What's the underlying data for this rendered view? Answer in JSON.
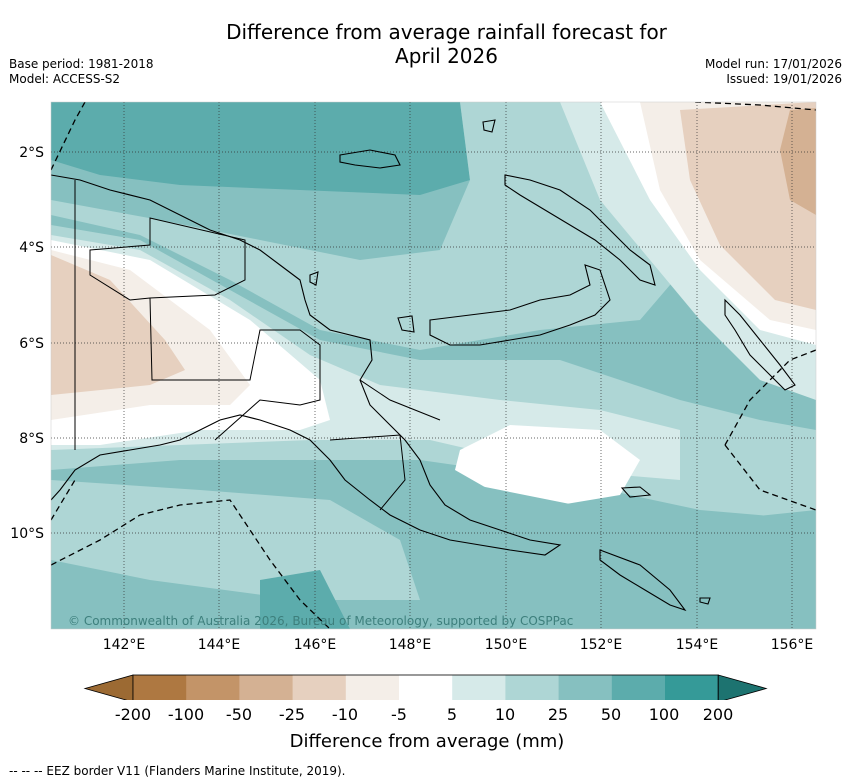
{
  "title": {
    "line1": "Difference from average rainfall forecast for",
    "line2": "April 2026"
  },
  "meta_left": {
    "base_period": "Base period: 1981-2018",
    "model": "Model: ACCESS-S2"
  },
  "meta_right": {
    "model_run": "Model run: 17/01/2026",
    "issued": "Issued: 19/01/2026"
  },
  "map": {
    "lat_labels": [
      "2°S",
      "4°S",
      "6°S",
      "8°S",
      "10°S"
    ],
    "lon_labels": [
      "142°E",
      "144°E",
      "146°E",
      "148°E",
      "150°E",
      "152°E",
      "154°E",
      "156°E"
    ],
    "copyright": "© Commonwealth of Australia 2026, Bureau of Meteorology, supported by COSPPac"
  },
  "colorbar": {
    "title": "Difference from average (mm)",
    "ticks": [
      "-200",
      "-100",
      "-50",
      "-25",
      "-10",
      "-5",
      "5",
      "10",
      "25",
      "50",
      "100",
      "200"
    ],
    "colors": [
      "#9c6a33",
      "#ae7841",
      "#c39468",
      "#d4b193",
      "#e6d0bf",
      "#f4eee8",
      "#ffffff",
      "#d6eae9",
      "#aed6d5",
      "#86c0c0",
      "#5cacac",
      "#359a98",
      "#1d7370"
    ]
  },
  "footnote": "--  --  -- EEZ border V11 (Flanders Marine Institute, 2019)."
}
